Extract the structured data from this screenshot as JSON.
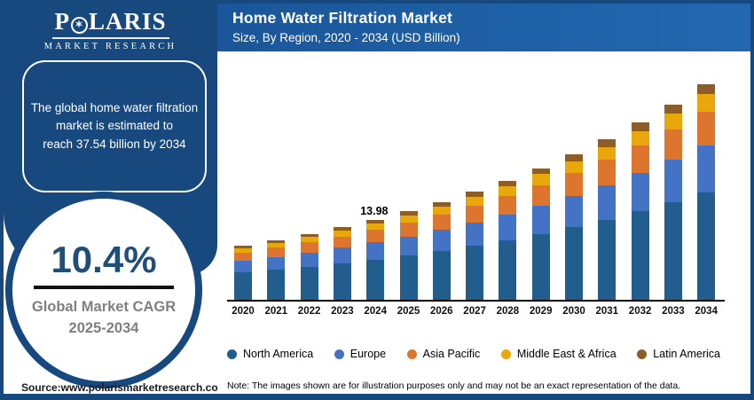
{
  "brand": {
    "name_pre": "P",
    "name_post": "LARIS",
    "o_star": "✶",
    "tagline": "MARKET RESEARCH"
  },
  "sidebar": {
    "estimate_lines": [
      "The global home water filtration",
      "market is estimated to",
      "reach 37.54 billion by 2034"
    ],
    "cagr_value": "10.4%",
    "cagr_label_line1": "Global Market CAGR",
    "cagr_label_line2": "2025-2034"
  },
  "header": {
    "title": "Home Water Filtration Market",
    "subtitle": "Size, By Region, 2020 - 2034 (USD Billion)"
  },
  "chart_data": {
    "type": "bar",
    "stacked": true,
    "title": "Home Water Filtration Market",
    "subtitle": "Size, By Region, 2020 - 2034 (USD Billion)",
    "unit": "USD Billion",
    "legend_position": "bottom",
    "grid": false,
    "ylim": [
      0,
      40
    ],
    "categories": [
      "2020",
      "2021",
      "2022",
      "2023",
      "2024",
      "2025",
      "2026",
      "2027",
      "2028",
      "2029",
      "2030",
      "2031",
      "2032",
      "2033",
      "2034"
    ],
    "totals": [
      9.41,
      10.39,
      11.47,
      12.66,
      13.98,
      15.43,
      17.04,
      18.81,
      20.77,
      22.93,
      25.31,
      27.94,
      30.85,
      34.06,
      37.54
    ],
    "series": [
      {
        "name": "North America",
        "color": "#215E8D",
        "values": [
          4.71,
          5.2,
          5.74,
          6.33,
          6.99,
          7.72,
          8.52,
          9.41,
          10.39,
          11.47,
          12.66,
          13.97,
          15.43,
          17.03,
          18.77
        ]
      },
      {
        "name": "Europe",
        "color": "#4472C4",
        "values": [
          2.02,
          2.23,
          2.47,
          2.72,
          3.01,
          3.32,
          3.66,
          4.04,
          4.47,
          4.93,
          5.44,
          6.01,
          6.63,
          7.32,
          8.07
        ]
      },
      {
        "name": "Asia Pacific",
        "color": "#DE752E",
        "values": [
          1.48,
          1.63,
          1.8,
          1.99,
          2.19,
          2.42,
          2.68,
          2.95,
          3.26,
          3.6,
          3.97,
          4.39,
          4.84,
          5.35,
          5.89
        ]
      },
      {
        "name": "Middle East & Africa",
        "color": "#E8A80C",
        "values": [
          0.77,
          0.85,
          0.94,
          1.04,
          1.15,
          1.27,
          1.4,
          1.54,
          1.7,
          1.88,
          2.08,
          2.29,
          2.53,
          2.79,
          3.08
        ]
      },
      {
        "name": "Latin America",
        "color": "#8E5C28",
        "values": [
          0.43,
          0.48,
          0.53,
          0.58,
          0.64,
          0.71,
          0.78,
          0.87,
          0.96,
          1.05,
          1.16,
          1.29,
          1.42,
          1.57,
          1.73
        ]
      }
    ],
    "annotation": {
      "category": "2024",
      "text": "13.98"
    }
  },
  "footer": {
    "source": "Source:www.polarismarketresearch.com",
    "note": "Note: The images shown are for illustration purposes only and may not be an exact representation of the data."
  },
  "colors": {
    "navy": "#17497E",
    "banner_blue": "#1D5FA3",
    "cagr_text": "#1F4E79",
    "gray_label": "#7F7F7F"
  }
}
